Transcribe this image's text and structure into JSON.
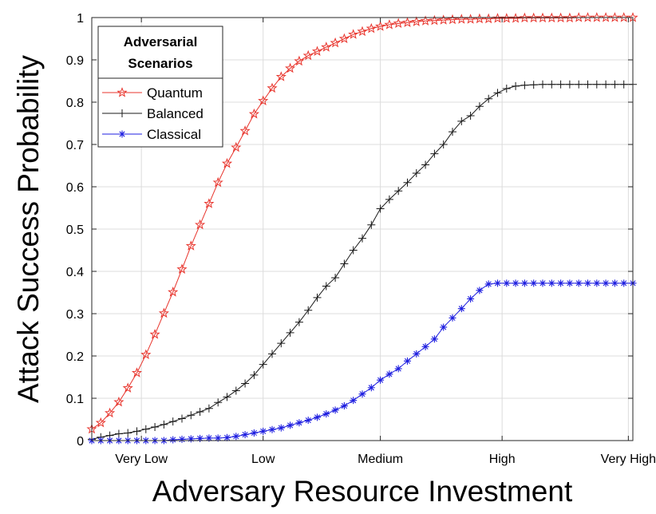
{
  "chart_data": {
    "type": "line",
    "title": "",
    "xlabel": "Adversary Resource Investment",
    "ylabel": "Attack Success Probability",
    "xlim": [
      0,
      60
    ],
    "ylim": [
      0,
      1
    ],
    "x_ticks": [
      {
        "x": 5.5,
        "label": "Very Low"
      },
      {
        "x": 19,
        "label": "Low"
      },
      {
        "x": 32,
        "label": "Medium"
      },
      {
        "x": 45.5,
        "label": "High"
      },
      {
        "x": 59.5,
        "label": "Very High"
      }
    ],
    "y_ticks": [
      0,
      0.1,
      0.2,
      0.3,
      0.4,
      0.5,
      0.6,
      0.7,
      0.8,
      0.9,
      1
    ],
    "y_tick_labels": [
      "0",
      "0.1",
      "0.2",
      "0.3",
      "0.4",
      "0.5",
      "0.6",
      "0.7",
      "0.8",
      "0.9",
      "1"
    ],
    "grid": true,
    "legend": {
      "title_lines": [
        "Adversarial",
        "Scenarios"
      ],
      "position": "top-left"
    },
    "x": [
      0,
      1,
      2,
      3,
      4,
      5,
      6,
      7,
      8,
      9,
      10,
      11,
      12,
      13,
      14,
      15,
      16,
      17,
      18,
      19,
      20,
      21,
      22,
      23,
      24,
      25,
      26,
      27,
      28,
      29,
      30,
      31,
      32,
      33,
      34,
      35,
      36,
      37,
      38,
      39,
      40,
      41,
      42,
      43,
      44,
      45,
      46,
      47,
      48,
      49,
      50,
      51,
      52,
      53,
      54,
      55,
      56,
      57,
      58,
      59,
      60
    ],
    "series": [
      {
        "name": "Quantum",
        "color": "#e8342c",
        "marker": "star",
        "values": [
          0.027,
          0.042,
          0.065,
          0.091,
          0.124,
          0.16,
          0.203,
          0.251,
          0.301,
          0.351,
          0.405,
          0.46,
          0.51,
          0.56,
          0.61,
          0.655,
          0.693,
          0.732,
          0.772,
          0.803,
          0.833,
          0.86,
          0.88,
          0.897,
          0.91,
          0.92,
          0.93,
          0.94,
          0.95,
          0.96,
          0.967,
          0.974,
          0.979,
          0.983,
          0.986,
          0.988,
          0.99,
          0.992,
          0.993,
          0.994,
          0.995,
          0.996,
          0.996,
          0.997,
          0.997,
          0.998,
          0.998,
          0.998,
          0.999,
          0.999,
          0.999,
          0.999,
          0.999,
          0.999,
          1.0,
          1.0,
          1.0,
          1.0,
          1.0,
          1.0,
          1.0
        ]
      },
      {
        "name": "Balanced",
        "color": "#1a1a1a",
        "marker": "plus",
        "values": [
          0.003,
          0.008,
          0.012,
          0.016,
          0.018,
          0.022,
          0.027,
          0.032,
          0.038,
          0.045,
          0.052,
          0.06,
          0.068,
          0.076,
          0.09,
          0.103,
          0.118,
          0.135,
          0.155,
          0.18,
          0.205,
          0.23,
          0.255,
          0.28,
          0.308,
          0.338,
          0.365,
          0.385,
          0.418,
          0.45,
          0.478,
          0.51,
          0.548,
          0.57,
          0.59,
          0.61,
          0.632,
          0.652,
          0.678,
          0.7,
          0.73,
          0.755,
          0.768,
          0.79,
          0.808,
          0.822,
          0.832,
          0.838,
          0.84,
          0.841,
          0.842,
          0.842,
          0.842,
          0.842,
          0.842,
          0.842,
          0.842,
          0.842,
          0.842,
          0.842,
          0.842
        ]
      },
      {
        "name": "Classical",
        "color": "#1f1fe0",
        "marker": "asterisk",
        "values": [
          0.0,
          0.0,
          0.0,
          0.0,
          0.0,
          0.0,
          0.0,
          0.0,
          0.0,
          0.002,
          0.003,
          0.004,
          0.005,
          0.006,
          0.006,
          0.007,
          0.01,
          0.014,
          0.018,
          0.022,
          0.026,
          0.03,
          0.036,
          0.042,
          0.048,
          0.055,
          0.063,
          0.072,
          0.082,
          0.095,
          0.11,
          0.125,
          0.143,
          0.157,
          0.17,
          0.188,
          0.205,
          0.222,
          0.24,
          0.268,
          0.29,
          0.312,
          0.335,
          0.355,
          0.37,
          0.372,
          0.372,
          0.372,
          0.372,
          0.372,
          0.372,
          0.372,
          0.372,
          0.372,
          0.372,
          0.372,
          0.372,
          0.372,
          0.372,
          0.372,
          0.372
        ]
      }
    ]
  }
}
